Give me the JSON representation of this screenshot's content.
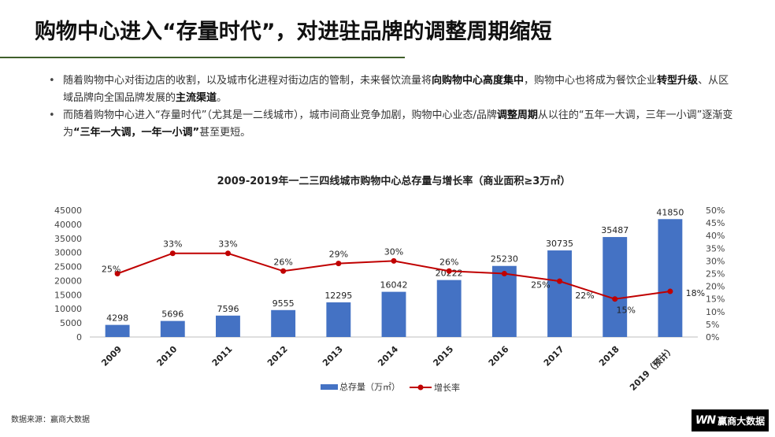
{
  "header": {
    "title": "购物中心进入“存量时代”，对进驻品牌的调整周期缩短"
  },
  "bullets": [
    {
      "segments": [
        {
          "text": "随着购物中心对街边店的收割，以及城市化进程对街边店的管制，未来餐饮流量将",
          "bold": false
        },
        {
          "text": "向购物中心高度集中",
          "bold": true
        },
        {
          "text": "，购物中心也将成为餐饮企业",
          "bold": false
        },
        {
          "text": "转型升级",
          "bold": true
        },
        {
          "text": "、从区域品牌向全国品牌发展的",
          "bold": false
        },
        {
          "text": "主流渠道",
          "bold": true
        },
        {
          "text": "。",
          "bold": false
        }
      ]
    },
    {
      "segments": [
        {
          "text": "而随着购物中心进入“存量时代”（尤其是一二线城市），城市间商业竞争加剧，购物中心业态/品牌",
          "bold": false
        },
        {
          "text": "调整周期",
          "bold": true
        },
        {
          "text": "从以往的“五年一大调，三年一小调”逐渐变为",
          "bold": false
        },
        {
          "text": "“三年一大调，一年一小调”",
          "bold": true
        },
        {
          "text": "甚至更短。",
          "bold": false
        }
      ]
    }
  ],
  "chart_data": {
    "type": "bar+line",
    "title": "2009-2019年一二三四线城市购物中心总存量与增长率（商业面积≥3万㎡）",
    "categories": [
      "2009",
      "2010",
      "2011",
      "2012",
      "2013",
      "2014",
      "2015",
      "2016",
      "2017",
      "2018",
      "2019（预计）"
    ],
    "series": [
      {
        "name": "总存量（万㎡）",
        "kind": "bar",
        "axis": "left",
        "color": "#4472c4",
        "values": [
          4298,
          5696,
          7596,
          9555,
          12295,
          16042,
          20222,
          25230,
          30735,
          35487,
          41850
        ],
        "labels": [
          "4298",
          "5696",
          "7596",
          "9555",
          "12295",
          "16042",
          "20222",
          "25230",
          "30735",
          "35487",
          "41850"
        ]
      },
      {
        "name": "增长率",
        "kind": "line",
        "axis": "right",
        "color": "#c00000",
        "values": [
          25,
          33,
          33,
          26,
          29,
          30,
          26,
          25,
          22,
          15,
          18
        ],
        "labels": [
          "25%",
          "33%",
          "33%",
          "26%",
          "29%",
          "30%",
          "26%",
          "25%",
          "22%",
          "15%",
          "18%"
        ]
      }
    ],
    "y_left": {
      "min": 0,
      "max": 45000,
      "ticks": [
        "0",
        "5000",
        "10000",
        "15000",
        "20000",
        "25000",
        "30000",
        "35000",
        "40000",
        "45000"
      ]
    },
    "y_right": {
      "min": 0,
      "max": 50,
      "ticks": [
        "0%",
        "5%",
        "10%",
        "15%",
        "20%",
        "25%",
        "30%",
        "35%",
        "40%",
        "45%",
        "50%"
      ]
    },
    "grid": false,
    "legend_position": "bottom"
  },
  "footer": {
    "source": "数据来源：赢商大数据",
    "logo_mark": "WN",
    "logo_text": "赢商大数据"
  }
}
